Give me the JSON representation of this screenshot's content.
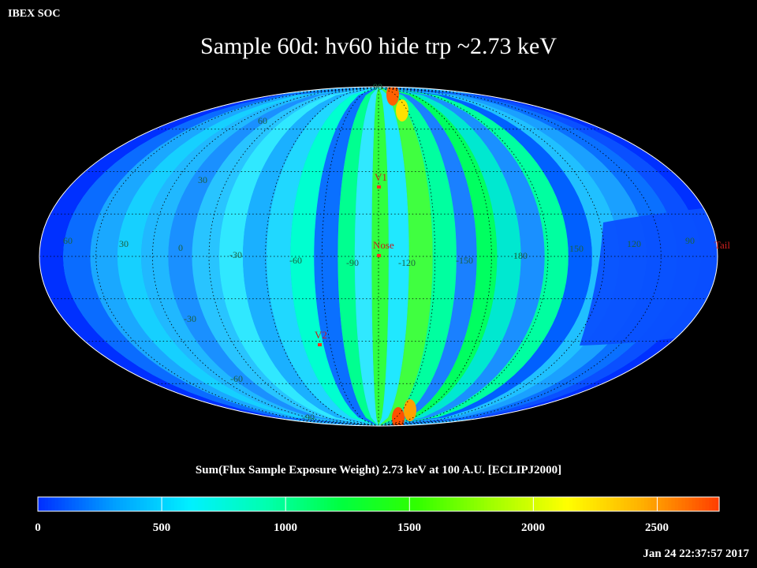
{
  "header": {
    "source": "IBEX SOC",
    "title": "Sample 60d: hv60 hide trp ~2.73 keV"
  },
  "map": {
    "projection": "Mollweide (ecliptic, J2000)",
    "lat_labels": [
      "90",
      "60",
      "30",
      "-30",
      "-60",
      "-90"
    ],
    "lon_labels": [
      "60",
      "30",
      "0",
      "-30",
      "-60",
      "-90",
      "-120",
      "-150",
      "180",
      "150",
      "120",
      "90"
    ],
    "markers": [
      {
        "label": "V1",
        "color": "#ff3020"
      },
      {
        "label": "Nose",
        "color": "#ff3020"
      },
      {
        "label": "V2",
        "color": "#ff3020"
      },
      {
        "label": "Tail",
        "color": "#d02020"
      }
    ]
  },
  "colorbar": {
    "caption": "Sum(Flux Sample Exposure Weight)  2.73 keV at 100 A.U. [ECLIPJ2000]",
    "min": 0,
    "max": 2750,
    "tick_labels": [
      "0",
      "500",
      "1000",
      "1500",
      "2000",
      "2500"
    ],
    "colors": [
      "#0030ff",
      "#00a0ff",
      "#00f0ff",
      "#00ffb0",
      "#00ff40",
      "#30ff00",
      "#a0ff00",
      "#ffff00",
      "#ffb000",
      "#ff4000"
    ]
  },
  "footer": {
    "timestamp": "Jan 24 22:37:57 2017"
  }
}
